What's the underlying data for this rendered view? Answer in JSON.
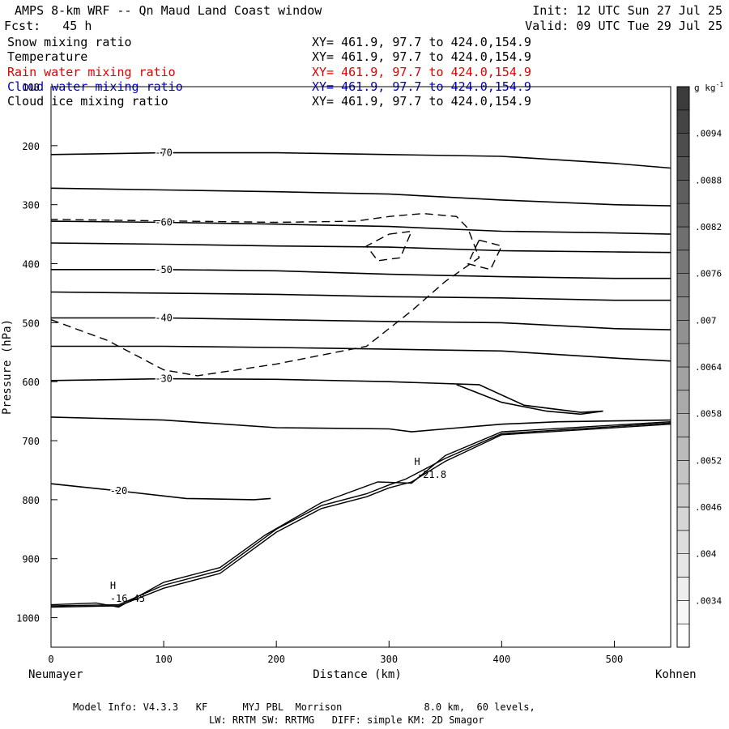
{
  "header": {
    "title": "AMPS 8-km WRF -- Qn Maud Land Coast window",
    "init": "Init: 12 UTC Sun 27 Jul 25",
    "fcst": "Fcst:   45 h",
    "valid": "Valid: 09 UTC Tue 29 Jul 25"
  },
  "fields": [
    {
      "name": "Snow mixing ratio",
      "xy": "XY= 461.9, 97.7 to 424.0,154.9",
      "color": "#000000"
    },
    {
      "name": "Temperature",
      "xy": "XY= 461.9, 97.7 to 424.0,154.9",
      "color": "#000000"
    },
    {
      "name": "Rain water mixing ratio",
      "xy": "XY= 461.9, 97.7 to 424.0,154.9",
      "color": "#e00000"
    },
    {
      "name": "Cloud water mixing ratio",
      "xy": "XY= 461.9, 97.7 to 424.0,154.9",
      "color": "#0000c0"
    },
    {
      "name": "Cloud ice mixing ratio",
      "xy": "XY= 461.9, 97.7 to 424.0,154.9",
      "color": "#000000"
    }
  ],
  "footer": {
    "line1": "Model Info: V4.3.3   KF      MYJ PBL  Morrison              8.0 km,  60 levels,",
    "line2": "LW: RRTM SW: RRTMG   DIFF: simple KM: 2D Smagor"
  },
  "chart_data": {
    "type": "contour",
    "xlabel": "Distance (km)",
    "ylabel": "Pressure (hPa)",
    "x_left_label": "Neumayer",
    "x_right_label": "Kohnen",
    "xlim": [
      0,
      550
    ],
    "ylim": [
      1050,
      100
    ],
    "xticks": [
      0,
      100,
      200,
      300,
      400,
      500
    ],
    "yticks": [
      100,
      200,
      300,
      400,
      500,
      600,
      700,
      800,
      900,
      1000
    ],
    "colorbar": {
      "unit": "g kg",
      "unit_exp": "-1",
      "ticks": [
        ".0094",
        ".0088",
        ".0082",
        ".0076",
        ".007",
        ".0064",
        ".0058",
        ".0052",
        ".0046",
        ".004",
        ".0034"
      ],
      "tick_values": [
        0.0094,
        0.0088,
        0.0082,
        0.0076,
        0.007,
        0.0064,
        0.0058,
        0.0052,
        0.0046,
        0.004,
        0.0034
      ],
      "min": 0.0028,
      "max": 0.01
    },
    "temperature_contours": [
      {
        "label": "-70",
        "points": [
          [
            0,
            215
          ],
          [
            100,
            212
          ],
          [
            200,
            212
          ],
          [
            300,
            215
          ],
          [
            400,
            218
          ],
          [
            500,
            230
          ],
          [
            550,
            238
          ]
        ]
      },
      {
        "label": "",
        "points": [
          [
            0,
            272
          ],
          [
            100,
            275
          ],
          [
            200,
            278
          ],
          [
            300,
            282
          ],
          [
            400,
            292
          ],
          [
            500,
            300
          ],
          [
            550,
            302
          ]
        ]
      },
      {
        "label": "-60",
        "points": [
          [
            0,
            328
          ],
          [
            100,
            330
          ],
          [
            200,
            333
          ],
          [
            300,
            337
          ],
          [
            400,
            345
          ],
          [
            500,
            348
          ],
          [
            550,
            350
          ]
        ]
      },
      {
        "label": "",
        "points": [
          [
            0,
            365
          ],
          [
            100,
            367
          ],
          [
            200,
            370
          ],
          [
            300,
            372
          ],
          [
            400,
            378
          ],
          [
            500,
            380
          ],
          [
            550,
            381
          ]
        ]
      },
      {
        "label": "-50",
        "points": [
          [
            0,
            410
          ],
          [
            100,
            410
          ],
          [
            200,
            412
          ],
          [
            300,
            418
          ],
          [
            400,
            422
          ],
          [
            500,
            425
          ],
          [
            550,
            425
          ]
        ]
      },
      {
        "label": "",
        "points": [
          [
            0,
            448
          ],
          [
            100,
            450
          ],
          [
            200,
            452
          ],
          [
            300,
            456
          ],
          [
            400,
            458
          ],
          [
            500,
            462
          ],
          [
            550,
            462
          ]
        ]
      },
      {
        "label": "-40",
        "points": [
          [
            0,
            492
          ],
          [
            100,
            492
          ],
          [
            200,
            495
          ],
          [
            300,
            498
          ],
          [
            400,
            500
          ],
          [
            500,
            510
          ],
          [
            550,
            512
          ]
        ]
      },
      {
        "label": "",
        "points": [
          [
            0,
            540
          ],
          [
            100,
            540
          ],
          [
            200,
            542
          ],
          [
            300,
            545
          ],
          [
            400,
            548
          ],
          [
            500,
            560
          ],
          [
            550,
            565
          ]
        ]
      },
      {
        "label": "-30",
        "points": [
          [
            0,
            598
          ],
          [
            100,
            595
          ],
          [
            200,
            596
          ],
          [
            300,
            600
          ],
          [
            380,
            605
          ],
          [
            420,
            640
          ],
          [
            470,
            652
          ],
          [
            490,
            650
          ],
          [
            470,
            655
          ],
          [
            440,
            650
          ],
          [
            400,
            635
          ],
          [
            360,
            605
          ]
        ]
      },
      {
        "label": "",
        "points": [
          [
            0,
            660
          ],
          [
            100,
            665
          ],
          [
            200,
            678
          ],
          [
            300,
            680
          ],
          [
            320,
            685
          ],
          [
            350,
            680
          ],
          [
            400,
            672
          ],
          [
            450,
            668
          ],
          [
            550,
            665
          ]
        ]
      },
      {
        "label": "-20",
        "points": [
          [
            0,
            773
          ],
          [
            60,
            785
          ],
          [
            120,
            798
          ],
          [
            180,
            800
          ],
          [
            195,
            798
          ]
        ]
      }
    ],
    "terrain_lines": [
      {
        "points": [
          [
            0,
            982
          ],
          [
            60,
            980
          ],
          [
            100,
            950
          ],
          [
            150,
            925
          ],
          [
            200,
            855
          ],
          [
            240,
            815
          ],
          [
            280,
            795
          ],
          [
            300,
            780
          ],
          [
            320,
            770
          ],
          [
            350,
            735
          ],
          [
            400,
            690
          ],
          [
            550,
            672
          ]
        ]
      },
      {
        "points": [
          [
            0,
            980
          ],
          [
            60,
            978
          ],
          [
            100,
            945
          ],
          [
            150,
            920
          ],
          [
            200,
            850
          ],
          [
            240,
            810
          ],
          [
            280,
            790
          ],
          [
            300,
            775
          ],
          [
            315,
            765
          ],
          [
            350,
            730
          ],
          [
            400,
            688
          ],
          [
            550,
            670
          ]
        ]
      },
      {
        "points": [
          [
            0,
            978
          ],
          [
            40,
            975
          ],
          [
            60,
            982
          ],
          [
            100,
            940
          ],
          [
            150,
            915
          ],
          [
            190,
            860
          ],
          [
            240,
            805
          ],
          [
            290,
            770
          ],
          [
            320,
            772
          ],
          [
            350,
            725
          ],
          [
            400,
            685
          ],
          [
            550,
            668
          ]
        ]
      }
    ],
    "dashed_contours": [
      {
        "points": [
          [
            0,
            495
          ],
          [
            50,
            530
          ],
          [
            100,
            580
          ],
          [
            130,
            590
          ],
          [
            200,
            570
          ],
          [
            280,
            540
          ],
          [
            320,
            480
          ],
          [
            350,
            430
          ],
          [
            380,
            390
          ],
          [
            370,
            340
          ],
          [
            360,
            320
          ],
          [
            330,
            315
          ],
          [
            300,
            320
          ],
          [
            270,
            328
          ],
          [
            200,
            330
          ],
          [
            0,
            325
          ]
        ]
      },
      {
        "points": [
          [
            300,
            350
          ],
          [
            320,
            345
          ],
          [
            310,
            390
          ],
          [
            290,
            395
          ],
          [
            280,
            370
          ],
          [
            300,
            350
          ]
        ]
      },
      {
        "points": [
          [
            380,
            360
          ],
          [
            400,
            370
          ],
          [
            390,
            410
          ],
          [
            370,
            400
          ],
          [
            380,
            360
          ]
        ]
      }
    ],
    "markers": [
      {
        "label": "H",
        "value": "-16.45",
        "x": 55,
        "p": 965
      },
      {
        "label": "H",
        "value": "-21.8",
        "x": 325,
        "p": 755
      }
    ],
    "field_colors": {
      "snow": "#000000",
      "temperature": "#000000",
      "rain": "#e00000",
      "cloud_water": "#0000c0",
      "cloud_ice": "#000000"
    }
  }
}
